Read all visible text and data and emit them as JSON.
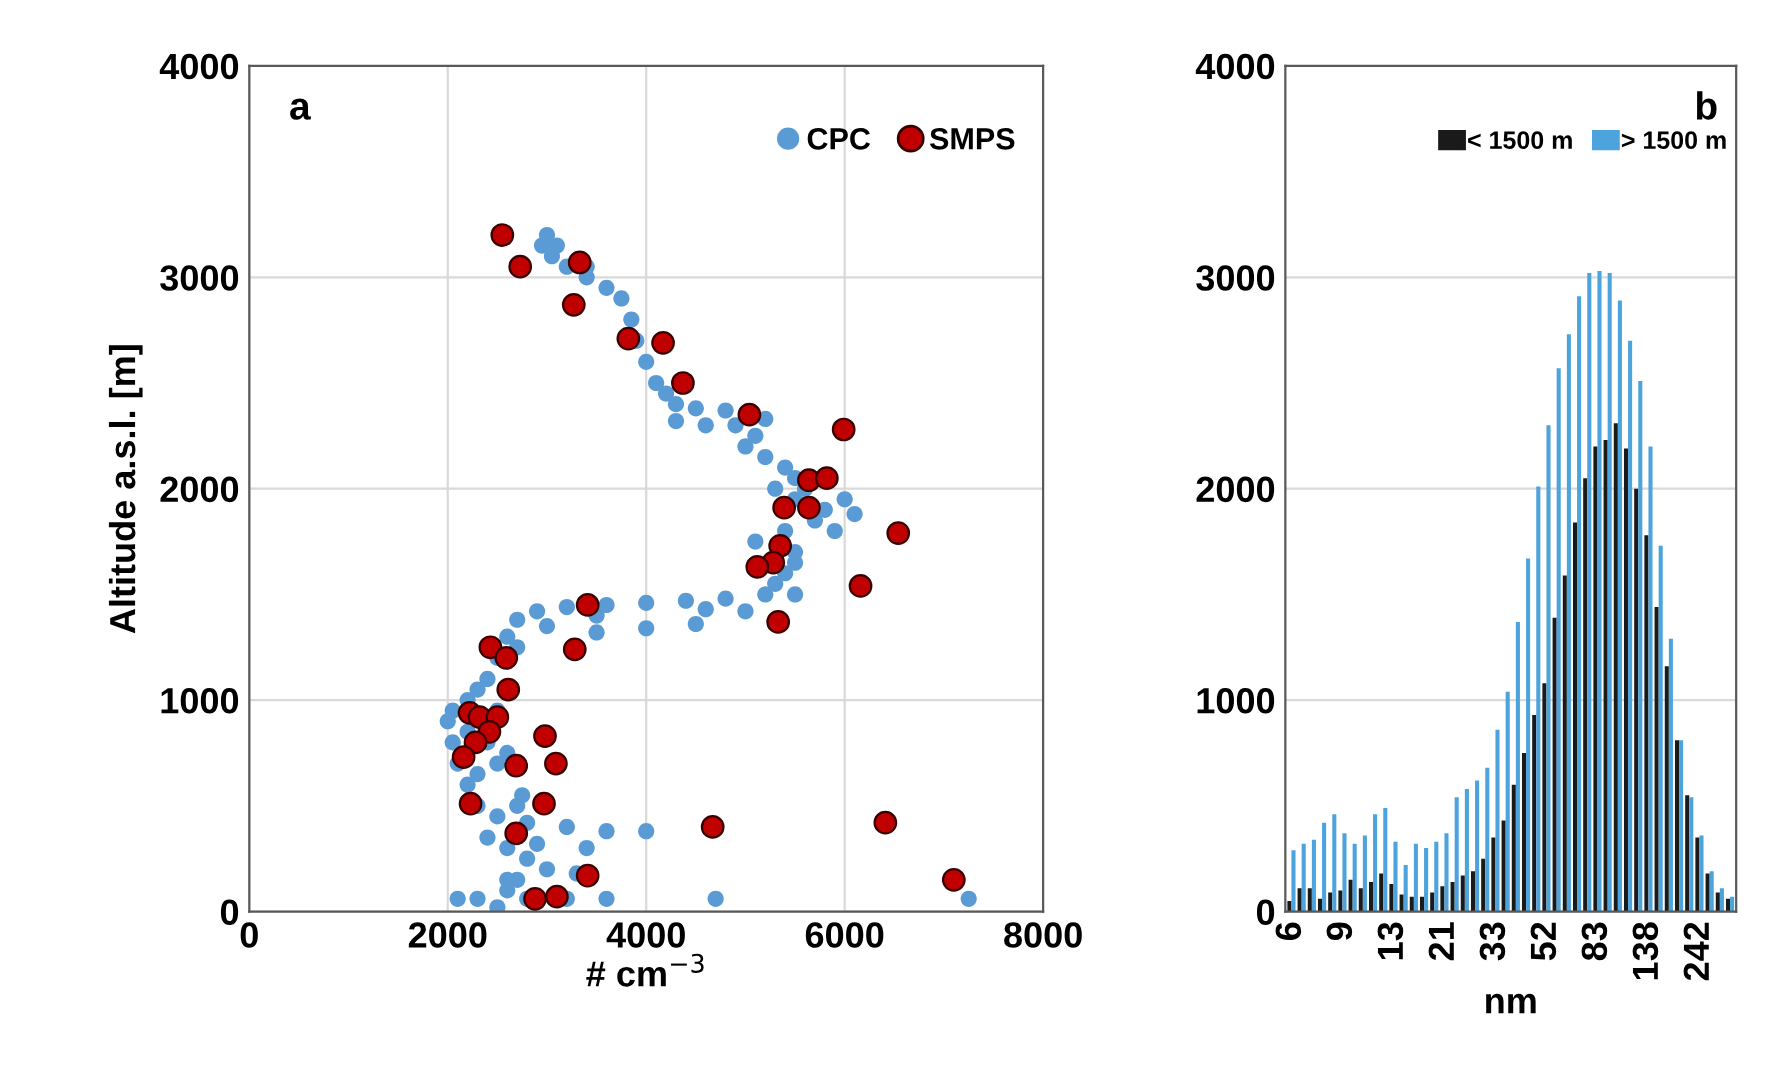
{
  "chart_data": [
    {
      "type": "scatter",
      "xlabel": "# cm$^{−3}$",
      "ylabel": "Altitude a.s.l. [m]",
      "annotations": [
        "a"
      ],
      "xlim": [
        0,
        8000
      ],
      "xticks": [
        0,
        2000,
        4000,
        6000,
        8000
      ],
      "ylim": [
        0,
        4000
      ],
      "yticks": [
        0,
        1000,
        2000,
        3000,
        4000
      ],
      "grid": true,
      "legend": "top right",
      "marker": "circle",
      "series": [
        {
          "name": "CPC",
          "color": "#5b9bd5",
          "x": [
            3000,
            2950,
            3050,
            3200,
            3400,
            3600,
            3750,
            3850,
            3900,
            4000,
            4100,
            4200,
            4300,
            4500,
            4800,
            4900,
            5200,
            5100,
            5000,
            5200,
            5400,
            5500,
            5300,
            5500,
            5800,
            6100,
            5700,
            5400,
            5100,
            5500,
            5500,
            5400,
            5300,
            5200,
            4800,
            4400,
            4000,
            3600,
            3200,
            2900,
            2700,
            3000,
            3500,
            4000,
            4500,
            2600,
            2500,
            2400,
            2300,
            2200,
            2050,
            2000,
            2050,
            2100,
            2300,
            2500,
            2600,
            2200,
            2300,
            2500,
            2800,
            3200,
            3600,
            4000,
            2400,
            2600,
            2800,
            3000,
            3300,
            2700,
            2600,
            2800,
            2300,
            2100,
            3200,
            3600,
            4700,
            7250,
            2500,
            2600,
            2900,
            2750,
            2400,
            2200,
            2700,
            3500,
            4600,
            5000,
            5500,
            5900,
            6000,
            5600,
            4600,
            4300,
            3400,
            3100,
            2500,
            2700,
            3400
          ],
          "values": [
            3200,
            3150,
            3100,
            3050,
            3000,
            2950,
            2900,
            2800,
            2700,
            2600,
            2500,
            2450,
            2400,
            2380,
            2370,
            2300,
            2330,
            2250,
            2200,
            2150,
            2100,
            2050,
            2000,
            1950,
            1900,
            1880,
            1850,
            1800,
            1750,
            1700,
            1650,
            1600,
            1550,
            1500,
            1480,
            1470,
            1460,
            1450,
            1440,
            1420,
            1380,
            1350,
            1320,
            1340,
            1360,
            1300,
            1200,
            1100,
            1050,
            1000,
            950,
            900,
            800,
            700,
            650,
            700,
            750,
            600,
            500,
            450,
            420,
            400,
            380,
            380,
            350,
            300,
            250,
            200,
            180,
            150,
            100,
            60,
            60,
            60,
            60,
            60,
            60,
            60,
            20,
            150,
            320,
            550,
            800,
            850,
            1250,
            1400,
            1430,
            1420,
            1500,
            1800,
            1950,
            2000,
            2300,
            2320,
            3050,
            3150,
            950,
            500,
            300
          ]
        },
        {
          "name": "SMPS",
          "color": "#c00000",
          "x": [
            2550,
            2730,
            3330,
            3270,
            3820,
            4170,
            4370,
            5040,
            5990,
            5640,
            5820,
            5390,
            5640,
            6540,
            5350,
            5280,
            5120,
            6160,
            3410,
            5330,
            3280,
            2430,
            2590,
            2610,
            2220,
            2320,
            2500,
            2420,
            2280,
            2160,
            2980,
            2690,
            3090,
            2230,
            2970,
            2690,
            4670,
            6410,
            3410,
            7100,
            2880,
            3100
          ],
          "values": [
            3200,
            3050,
            3070,
            2870,
            2710,
            2690,
            2500,
            2350,
            2280,
            2040,
            2050,
            1910,
            1910,
            1790,
            1730,
            1650,
            1630,
            1540,
            1450,
            1370,
            1240,
            1250,
            1200,
            1050,
            940,
            920,
            920,
            850,
            800,
            730,
            830,
            690,
            700,
            510,
            510,
            370,
            400,
            420,
            170,
            150,
            60,
            70
          ]
        }
      ]
    },
    {
      "type": "bar",
      "xlabel": "nm",
      "annotations": [
        "b"
      ],
      "categories": [
        "6",
        null,
        null,
        null,
        null,
        "9",
        null,
        null,
        null,
        null,
        "13",
        null,
        null,
        null,
        null,
        "21",
        null,
        null,
        null,
        null,
        "33",
        null,
        null,
        null,
        null,
        "52",
        null,
        null,
        null,
        null,
        "83",
        null,
        null,
        null,
        null,
        "138",
        null,
        null,
        null,
        null,
        "242",
        null,
        null,
        null
      ],
      "ylim": [
        0,
        4000
      ],
      "yticks": [
        0,
        1000,
        2000,
        3000,
        4000
      ],
      "grid": "y",
      "legend": "top right",
      "series": [
        {
          "name": "< 1500 m",
          "color": "#1a1a1a",
          "values": [
            50,
            110,
            110,
            60,
            90,
            100,
            150,
            110,
            140,
            180,
            130,
            80,
            70,
            70,
            90,
            120,
            140,
            170,
            190,
            250,
            350,
            430,
            600,
            750,
            930,
            1080,
            1390,
            1590,
            1840,
            2050,
            2200,
            2230,
            2310,
            2190,
            2000,
            1780,
            1440,
            1160,
            810,
            550,
            350,
            180,
            90,
            60
          ]
        },
        {
          "name": "> 1500 m",
          "color": "#4da3dc",
          "values": [
            290,
            320,
            340,
            420,
            460,
            370,
            320,
            360,
            460,
            490,
            330,
            220,
            320,
            300,
            330,
            370,
            540,
            580,
            620,
            680,
            860,
            1040,
            1370,
            1670,
            2010,
            2300,
            2570,
            2730,
            2910,
            3020,
            3030,
            3020,
            2890,
            2700,
            2510,
            2200,
            1730,
            1290,
            810,
            540,
            360,
            190,
            110,
            70
          ]
        }
      ]
    }
  ]
}
